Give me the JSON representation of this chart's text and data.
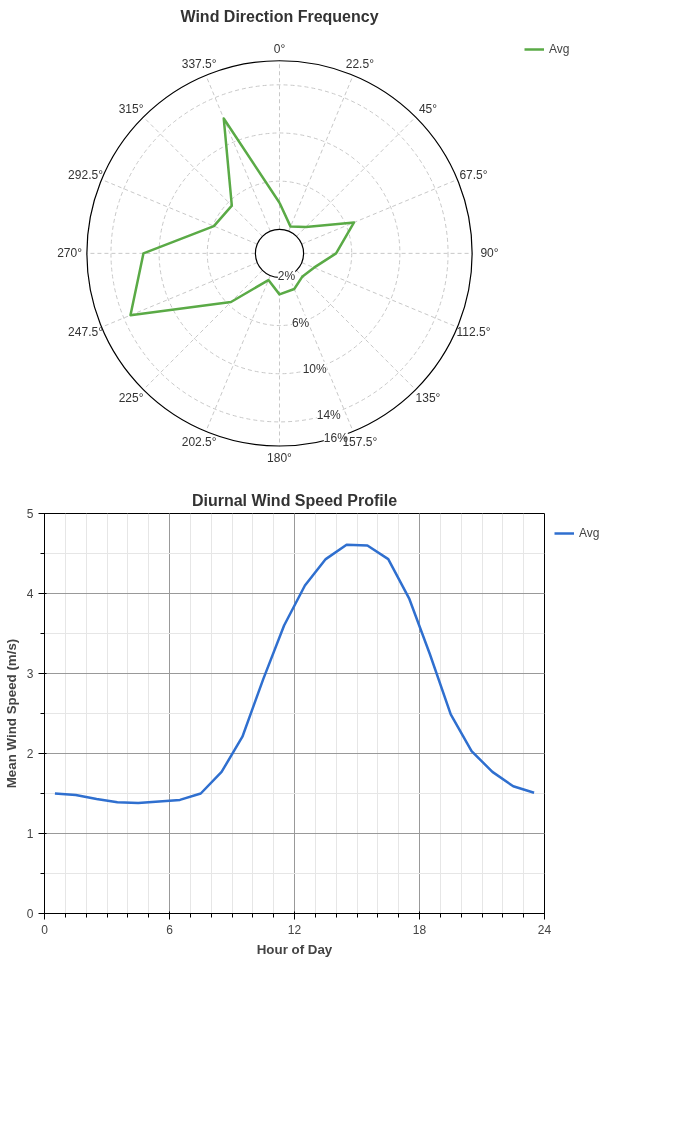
{
  "chart_data": [
    {
      "type": "radar",
      "title": "Wind Direction Frequency",
      "categories": [
        "0°",
        "22.5°",
        "45°",
        "67.5°",
        "90°",
        "112.5°",
        "135°",
        "157.5°",
        "180°",
        "202.5°",
        "225°",
        "247.5°",
        "270°",
        "292.5°",
        "315°",
        "337.5°"
      ],
      "series": [
        {
          "name": "Avg",
          "color": "#5aaa46",
          "values": [
            4.2,
            2.4,
            3.1,
            6.7,
            4.7,
            3.1,
            2.7,
            3.2,
            3.4,
            2.4,
            5.7,
            13.4,
            11.3,
            5.9,
            5.6,
            12.1
          ]
        }
      ],
      "ylim": [
        0,
        16
      ],
      "yticks": [
        {
          "value": 2,
          "label": "2%"
        },
        {
          "value": 6,
          "label": "6%"
        },
        {
          "value": 10,
          "label": "10%"
        },
        {
          "value": 14,
          "label": "14%"
        },
        {
          "value": 16,
          "label": "16%"
        }
      ],
      "grid": true,
      "legend": "right"
    },
    {
      "type": "line",
      "title": "Diurnal Wind Speed Profile",
      "xlabel": "Hour of Day",
      "ylabel": "Mean Wind Speed (m/s)",
      "x": [
        0.5,
        1.5,
        2.5,
        3.5,
        4.5,
        5.5,
        6.5,
        7.5,
        8.5,
        9.5,
        10.5,
        11.5,
        12.5,
        13.5,
        14.5,
        15.5,
        16.5,
        17.5,
        18.5,
        19.5,
        20.5,
        21.5,
        22.5,
        23.5
      ],
      "series": [
        {
          "name": "Avg",
          "color": "#2f6fcf",
          "values": [
            1.5,
            1.48,
            1.43,
            1.39,
            1.38,
            1.4,
            1.42,
            1.5,
            1.77,
            2.21,
            2.93,
            3.6,
            4.1,
            4.43,
            4.61,
            4.6,
            4.43,
            3.94,
            3.24,
            2.49,
            2.03,
            1.77,
            1.59,
            1.51
          ]
        }
      ],
      "xlim": [
        0,
        24
      ],
      "xticks": [
        0,
        6,
        12,
        18,
        24
      ],
      "ylim": [
        0,
        5
      ],
      "yticks": [
        0,
        1,
        2,
        3,
        4,
        5
      ],
      "grid": true,
      "legend": "right",
      "marker": "none",
      "line_style": "solid"
    }
  ]
}
